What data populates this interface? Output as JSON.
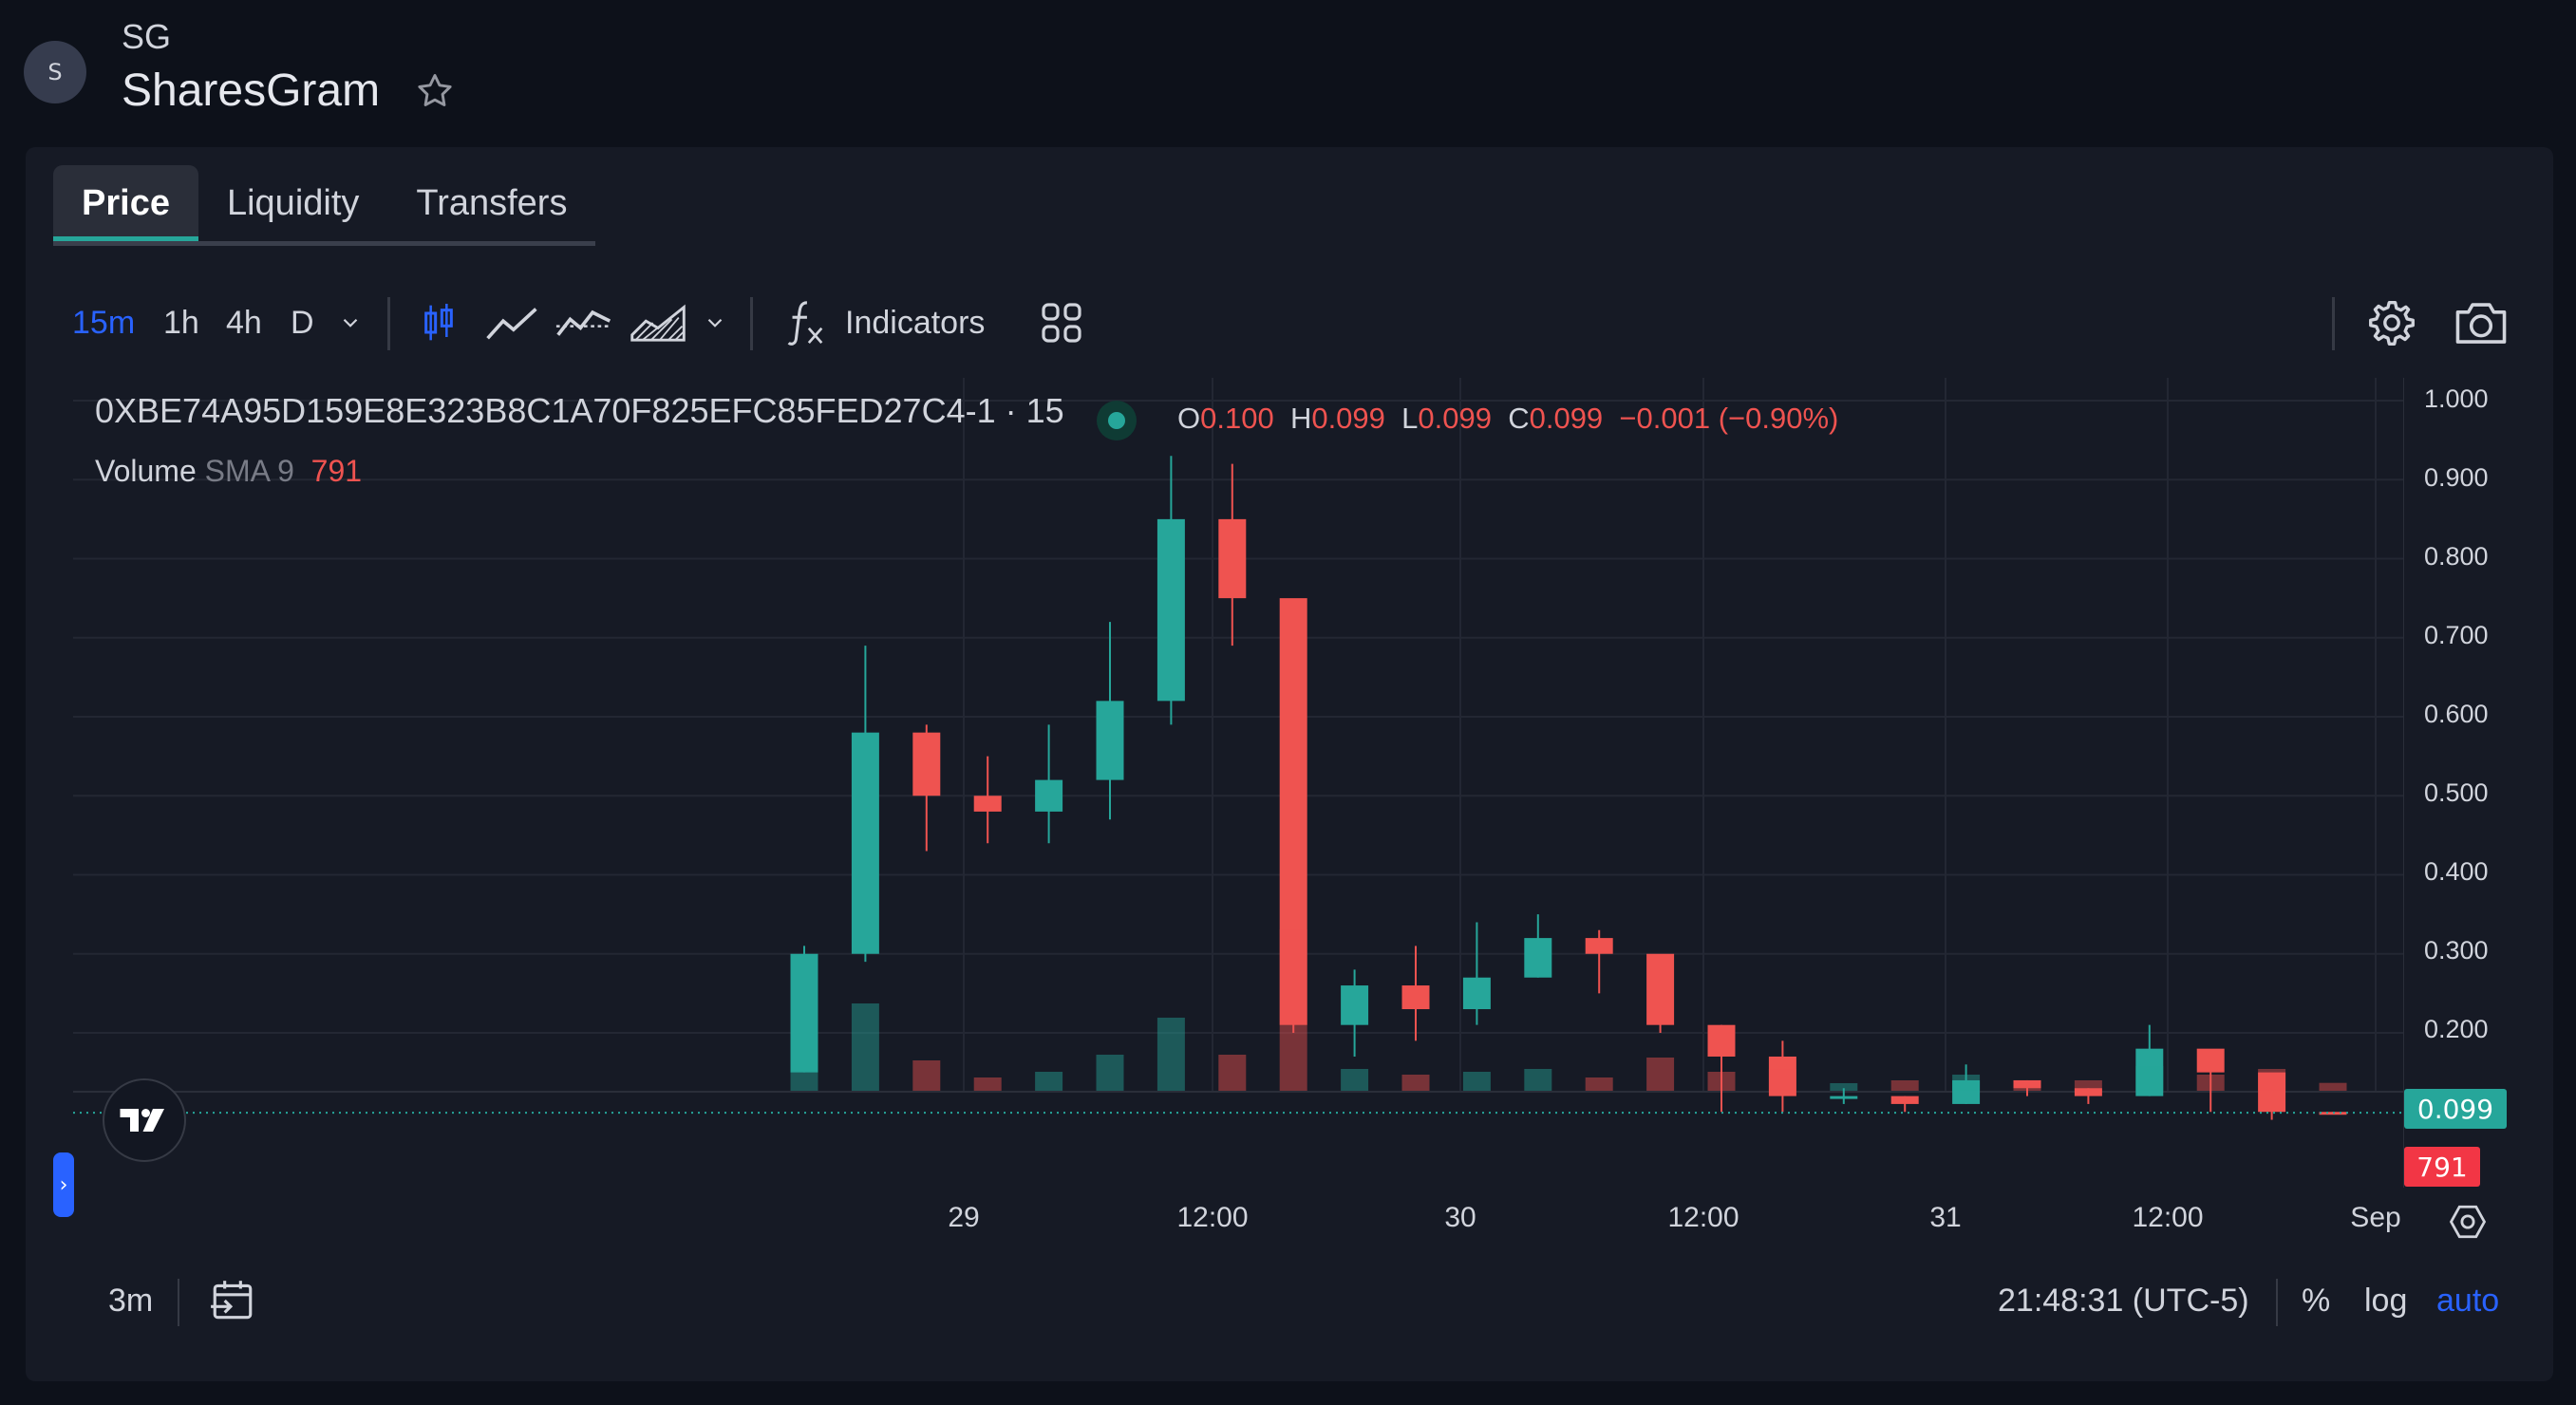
{
  "header": {
    "avatar_letter": "S",
    "symbol": "SG",
    "name": "SharesGram",
    "star_icon": "star-outline-icon"
  },
  "tabs": [
    {
      "label": "Price",
      "active": true
    },
    {
      "label": "Liquidity",
      "active": false
    },
    {
      "label": "Transfers",
      "active": false
    }
  ],
  "toolbar": {
    "intervals": [
      "15m",
      "1h",
      "4h",
      "D"
    ],
    "active_interval": "15m",
    "indicators_label": "Indicators",
    "icons": [
      "chevron-down-icon",
      "candles-icon",
      "line-icon",
      "baseline-icon",
      "area-icon",
      "chevron-down-icon",
      "fx-icon",
      "layout-grid-icon",
      "gear-icon",
      "camera-icon"
    ]
  },
  "legend": {
    "pair": "0XBE74A95D159E8E323B8C1A70F825EFC85FED27C4-1 · 15",
    "o_label": "O",
    "o_value": "0.100",
    "h_label": "H",
    "h_value": "0.099",
    "l_label": "L",
    "l_value": "0.099",
    "c_label": "C",
    "c_value": "0.099",
    "change": "−0.001 (−0.90%)",
    "volume_label": "Volume",
    "volume_sma": "SMA 9",
    "volume_value": "791"
  },
  "price_axis": [
    "1.000",
    "0.900",
    "0.800",
    "0.700",
    "0.600",
    "0.500",
    "0.400",
    "0.300",
    "0.200"
  ],
  "current_price": "0.099",
  "current_volume": "791",
  "time_axis": [
    "29",
    "12:00",
    "30",
    "12:00",
    "31",
    "12:00",
    "Sep"
  ],
  "bottom": {
    "range": "3m",
    "time": "21:48:31 (UTC-5)",
    "percent": "%",
    "log": "log",
    "auto": "auto"
  },
  "colors": {
    "up": "#26a69a",
    "down": "#ef5350",
    "accent": "#2962ff",
    "background": "#161a25"
  },
  "chart_data": {
    "type": "candlestick",
    "symbol": "0XBE74A95D159E8E323B8C1A70F825EFC85FED27C4-1",
    "interval": "15",
    "x": [
      "28 18:00",
      "28 21:00",
      "29 00:00",
      "29 03:00",
      "29 06:00",
      "29 09:00",
      "29 12:00",
      "29 15:00",
      "29 18:00",
      "29 21:00",
      "30 00:00",
      "30 03:00",
      "30 06:00",
      "30 09:00",
      "30 12:00",
      "30 15:00",
      "30 18:00",
      "30 21:00",
      "31 00:00",
      "31 03:00",
      "31 06:00",
      "31 09:00",
      "31 12:00",
      "31 15:00",
      "31 18:00",
      "31 21:00"
    ],
    "close": [
      0.3,
      0.58,
      0.5,
      0.48,
      0.52,
      0.62,
      0.85,
      0.75,
      0.21,
      0.26,
      0.23,
      0.27,
      0.32,
      0.3,
      0.21,
      0.17,
      0.12,
      0.12,
      0.11,
      0.14,
      0.13,
      0.12,
      0.18,
      0.15,
      0.1,
      0.099
    ],
    "high": [
      0.31,
      0.69,
      0.59,
      0.55,
      0.59,
      0.72,
      0.93,
      0.92,
      0.62,
      0.28,
      0.31,
      0.34,
      0.35,
      0.33,
      0.28,
      0.21,
      0.19,
      0.13,
      0.12,
      0.16,
      0.14,
      0.13,
      0.21,
      0.17,
      0.11,
      0.1
    ],
    "low": [
      0.15,
      0.29,
      0.43,
      0.44,
      0.44,
      0.47,
      0.59,
      0.69,
      0.2,
      0.17,
      0.19,
      0.21,
      0.27,
      0.25,
      0.2,
      0.1,
      0.1,
      0.11,
      0.1,
      0.11,
      0.12,
      0.11,
      0.12,
      0.1,
      0.09,
      0.099
    ],
    "ylim": [
      0.099,
      1.0
    ]
  }
}
